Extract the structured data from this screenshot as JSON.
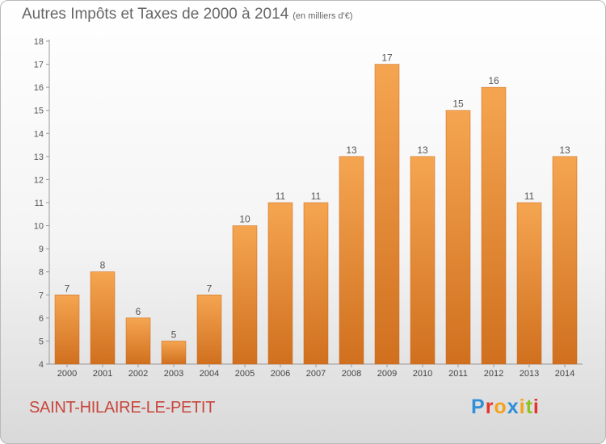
{
  "title": "Autres Impôts et Taxes de 2000 à 2014",
  "subtitle": "(en milliers d'€)",
  "place": "SAINT-HILAIRE-LE-PETIT",
  "logo": {
    "letters": [
      "P",
      "r",
      "o",
      "x",
      "i",
      "t",
      "i"
    ],
    "colors": [
      "#2f8fd8",
      "#e3332c",
      "#f3a21c",
      "#2f8fd8",
      "#f3a21c",
      "#8fc21f",
      "#e3332c"
    ]
  },
  "chart_data": {
    "type": "bar",
    "title": "Autres Impôts et Taxes de 2000 à 2014",
    "subtitle": "(en milliers d'€)",
    "categories": [
      "2000",
      "2001",
      "2002",
      "2003",
      "2004",
      "2005",
      "2006",
      "2007",
      "2008",
      "2009",
      "2010",
      "2011",
      "2012",
      "2013",
      "2014"
    ],
    "values": [
      7,
      8,
      6,
      5,
      7,
      10,
      11,
      11,
      13,
      17,
      13,
      15,
      16,
      11,
      13
    ],
    "data_labels": [
      "7",
      "8",
      "6",
      "5",
      "7",
      "10",
      "11",
      "11",
      "13",
      "17",
      "13",
      "15",
      "16",
      "11",
      "13"
    ],
    "ylim": [
      4,
      18
    ],
    "yticks": [
      4,
      5,
      6,
      7,
      8,
      9,
      10,
      11,
      12,
      13,
      14,
      15,
      16,
      17,
      18
    ],
    "ytick_labels": [
      "4",
      "5",
      "6",
      "7",
      "8",
      "9",
      "10",
      "11",
      "12",
      "13",
      "14",
      "15",
      "16",
      "17",
      "18"
    ],
    "grid": false,
    "bar_color_light": "#f5a550",
    "bar_color_dark": "#d0701f"
  }
}
